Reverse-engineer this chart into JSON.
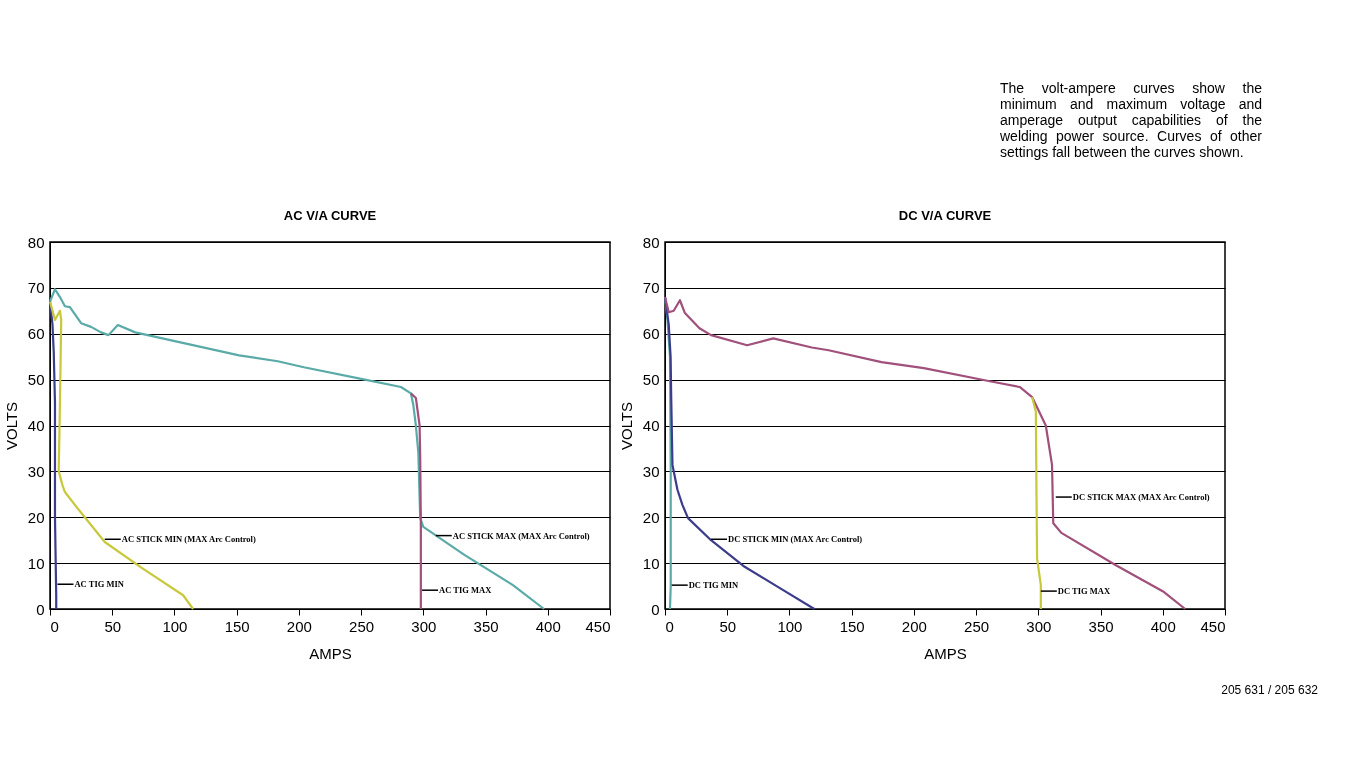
{
  "chart_data": [
    {
      "type": "line",
      "title": "AC V/A CURVE",
      "xlabel": "AMPS",
      "ylabel": "VOLTS",
      "xlim": [
        0,
        450
      ],
      "xticks": [
        0,
        50,
        100,
        150,
        200,
        250,
        300,
        350,
        400,
        450
      ],
      "ylim": [
        0,
        80
      ],
      "yticks": [
        0,
        10,
        20,
        30,
        40,
        50,
        60,
        70,
        80
      ],
      "grid": "y",
      "series": [
        {
          "color": "#3c3c8c",
          "x": [
            0,
            2,
            3,
            4,
            4,
            5,
            5
          ],
          "values": [
            67,
            62,
            56,
            45,
            20,
            3,
            0
          ]
        },
        {
          "color": "#c8c83c",
          "x": [
            0,
            4,
            8,
            9,
            8,
            7,
            10,
            12,
            22,
            44,
            74,
            107,
            115
          ],
          "values": [
            67,
            63,
            65,
            63,
            45,
            30,
            27,
            25.5,
            22,
            14.6,
            8.9,
            3,
            0
          ]
        },
        {
          "color": "#5aaaa8",
          "x": [
            0,
            4,
            8,
            12,
            16,
            25,
            33,
            41,
            47,
            54.5,
            68.5,
            152,
            183,
            204,
            255,
            282,
            290,
            292,
            294,
            296,
            297.5,
            300,
            333,
            372,
            397
          ],
          "values": [
            67,
            69.7,
            68,
            66,
            65.8,
            62.3,
            61.5,
            60.3,
            59.7,
            61.9,
            60.3,
            55.3,
            54,
            52.7,
            49.9,
            48.4,
            47,
            44.4,
            40,
            34,
            19.8,
            17.9,
            11.8,
            5.2,
            0
          ]
        },
        {
          "color": "#a0507a",
          "x": [
            290,
            294,
            297,
            297.5,
            298,
            298,
            298
          ],
          "values": [
            47,
            46,
            40,
            32.9,
            18.3,
            7.4,
            0
          ]
        }
      ],
      "annotations": [
        {
          "text": "AC TIG MIN",
          "x": 6,
          "y": 5.4
        },
        {
          "text": "AC STICK MIN (MAX Arc Control)",
          "x": 44,
          "y": 15.2
        },
        {
          "text": "AC STICK MAX (MAX Arc Control)",
          "x": 310,
          "y": 16
        },
        {
          "text": "AC TIG MAX",
          "x": 299,
          "y": 4.1
        }
      ]
    },
    {
      "type": "line",
      "title": "DC V/A CURVE",
      "xlabel": "AMPS",
      "ylabel": "VOLTS",
      "xlim": [
        0,
        450
      ],
      "xticks": [
        0,
        50,
        100,
        150,
        200,
        250,
        300,
        350,
        400,
        450
      ],
      "ylim": [
        0,
        80
      ],
      "yticks": [
        0,
        10,
        20,
        30,
        40,
        50,
        60,
        70,
        80
      ],
      "grid": "y",
      "series": [
        {
          "color": "#5aaaa8",
          "x": [
            0,
            2,
            4,
            4.6,
            4.6,
            4
          ],
          "values": [
            68,
            63,
            55,
            30,
            5,
            0
          ]
        },
        {
          "color": "#3c3c8c",
          "x": [
            0,
            3,
            4.5,
            5,
            6,
            10,
            14,
            18.5,
            37,
            64,
            92,
            120
          ],
          "values": [
            68,
            62,
            55,
            46,
            31.4,
            26,
            22.7,
            19.8,
            15,
            9.2,
            4.6,
            0
          ]
        },
        {
          "color": "#a0507a",
          "x": [
            0,
            3,
            7,
            12,
            16,
            27.7,
            37,
            66,
            87,
            118,
            131.5,
            174,
            208,
            260,
            285,
            295,
            306,
            311,
            312,
            318.5,
            362,
            401,
            418
          ],
          "values": [
            68,
            64.7,
            65,
            67.3,
            64.5,
            61.2,
            59.7,
            57.5,
            59,
            57,
            56.4,
            53.8,
            52.5,
            49.7,
            48.4,
            46.2,
            40,
            31.4,
            18.7,
            16.6,
            9.6,
            3.7,
            0
          ]
        },
        {
          "color": "#c8c83c",
          "x": [
            295,
            298,
            298.5,
            299,
            302,
            302
          ],
          "values": [
            46.2,
            43,
            25.5,
            11,
            5.2,
            0
          ]
        }
      ],
      "annotations": [
        {
          "text": "DC TIG MIN",
          "x": 5.4,
          "y": 5.2
        },
        {
          "text": "DC STICK MIN (MAX Arc Control)",
          "x": 37,
          "y": 15.2
        },
        {
          "text": "DC STICK MAX (MAX Arc Control)",
          "x": 314,
          "y": 24.4
        },
        {
          "text": "DC TIG MAX",
          "x": 302,
          "y": 3.9
        },
        "The volt-ampere curves show the minimum and maximum voltage and amperage output capabilities of the welding power source. Curves of other settings fall between the curves shown.",
        "205 631 / 205 632"
      ]
    }
  ]
}
